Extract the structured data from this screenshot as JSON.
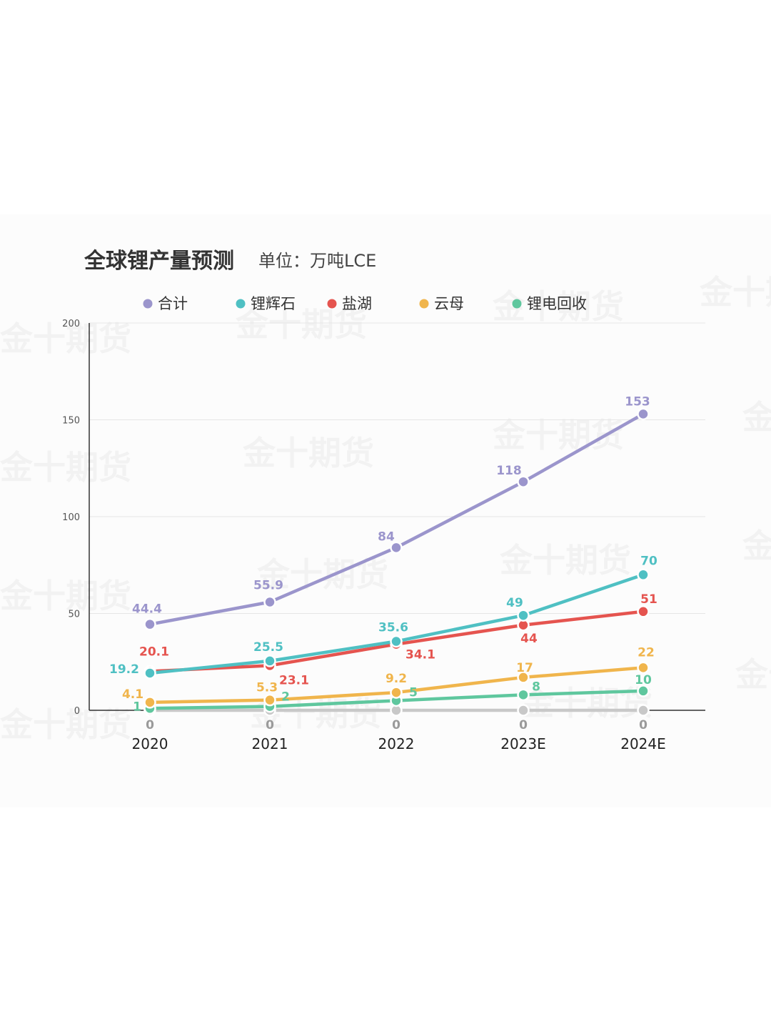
{
  "chart_data": {
    "type": "line",
    "title": "全球锂产量预测",
    "unit": "单位：万吨LCE",
    "categories": [
      "2020",
      "2021",
      "2022",
      "2023E",
      "2024E"
    ],
    "ylim": [
      0,
      200
    ],
    "yticks": [
      "0",
      "50",
      "100",
      "150",
      "200"
    ],
    "grid": true,
    "legend_position": "top",
    "series": [
      {
        "name": "合计",
        "color": "#9b95cc",
        "values": [
          44.4,
          55.9,
          84,
          118,
          153
        ],
        "labels": [
          "44.4",
          "55.9",
          "84",
          "118",
          "153"
        ]
      },
      {
        "name": "锂辉石",
        "color": "#4fc0c3",
        "values": [
          19.2,
          25.5,
          35.6,
          49,
          70
        ],
        "labels": [
          "19.2",
          "25.5",
          "35.6",
          "49",
          "70"
        ]
      },
      {
        "name": "盐湖",
        "color": "#e5544f",
        "values": [
          20.1,
          23.1,
          34.1,
          44,
          51
        ],
        "labels": [
          "20.1",
          "23.1",
          "34.1",
          "44",
          "51"
        ]
      },
      {
        "name": "云母",
        "color": "#f0b54c",
        "values": [
          4.1,
          5.3,
          9.2,
          17,
          22
        ],
        "labels": [
          "4.1",
          "5.3",
          "9.2",
          "17",
          "22"
        ]
      },
      {
        "name": "锂电回收",
        "color": "#5fc79e",
        "values": [
          1,
          2,
          5,
          8,
          10
        ],
        "labels": [
          "1",
          "2",
          "5",
          "8",
          "10"
        ]
      },
      {
        "name": "",
        "color": "#c8c8c8",
        "values": [
          0,
          0,
          0,
          0,
          0
        ],
        "labels": [
          "0",
          "0",
          "0",
          "0",
          "0"
        ]
      }
    ]
  },
  "watermark": "金十期货"
}
